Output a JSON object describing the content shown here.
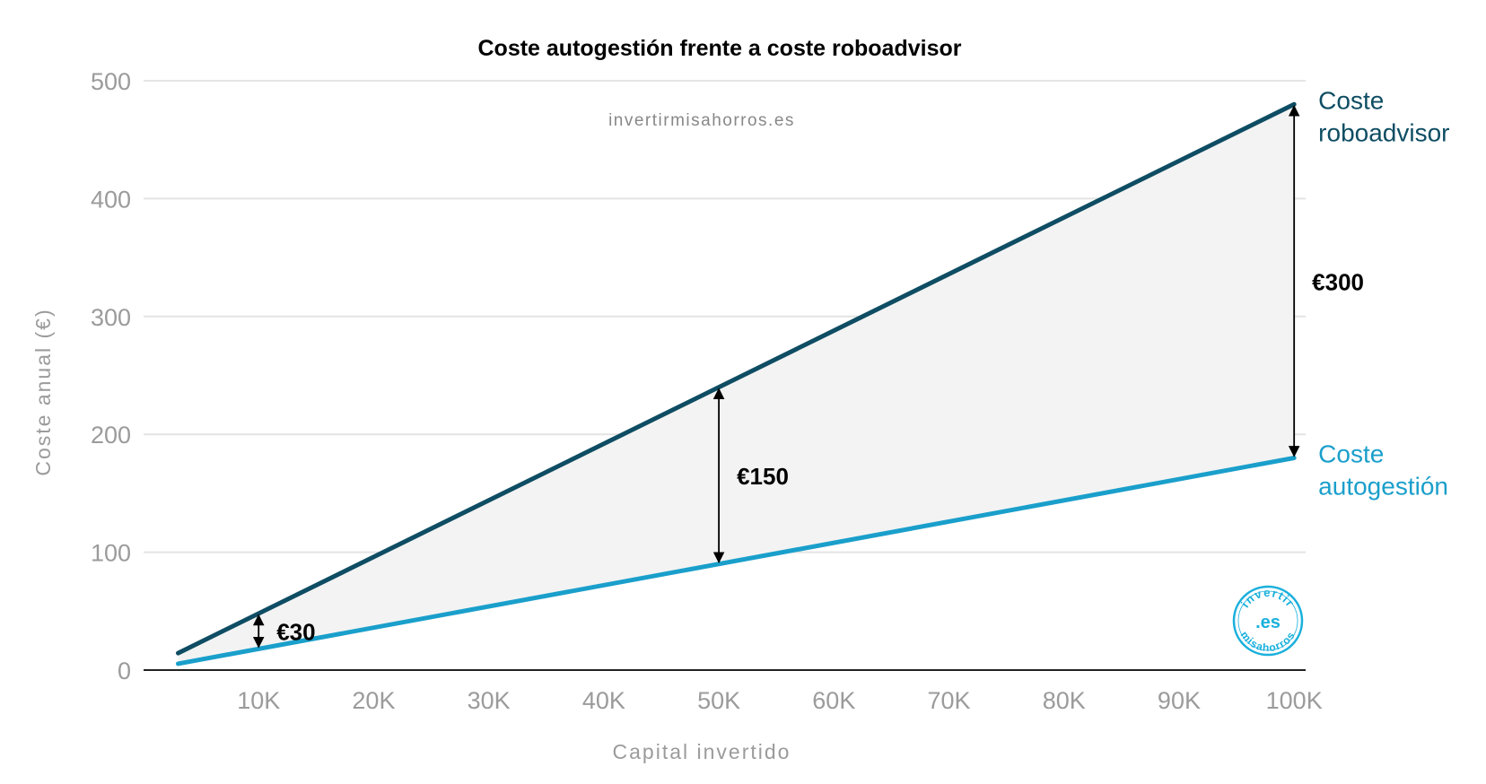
{
  "chart_data": {
    "type": "line",
    "title": "Coste autogestión frente a coste roboadvisor",
    "watermark": "invertirmisahorros.es",
    "xlabel": "Capital invertido",
    "ylabel": "Coste anual (€)",
    "xlim": [
      0,
      101000
    ],
    "ylim": [
      0,
      500
    ],
    "x_ticks": [
      10000,
      20000,
      30000,
      40000,
      50000,
      60000,
      70000,
      80000,
      90000,
      100000
    ],
    "x_tick_labels": [
      "10K",
      "20K",
      "30K",
      "40K",
      "50K",
      "60K",
      "70K",
      "80K",
      "90K",
      "100K"
    ],
    "y_ticks": [
      0,
      100,
      200,
      300,
      400,
      500
    ],
    "y_tick_labels": [
      "0",
      "100",
      "200",
      "300",
      "400",
      "500"
    ],
    "grid": true,
    "series": [
      {
        "name": "Coste roboadvisor",
        "label_lines": [
          "Coste",
          "roboadvisor"
        ],
        "color": "#0e4d63",
        "x": [
          3000,
          100000
        ],
        "y": [
          14.4,
          480
        ]
      },
      {
        "name": "Coste autogestión",
        "label_lines": [
          "Coste",
          "autogestión"
        ],
        "color": "#1a9fcb",
        "x": [
          3000,
          100000
        ],
        "y": [
          5.4,
          180
        ]
      }
    ],
    "fill_between_color": "#f3f3f3",
    "annotations": [
      {
        "x": 10000,
        "y_low": 18,
        "y_high": 48,
        "label": "€30"
      },
      {
        "x": 50000,
        "y_low": 90,
        "y_high": 240,
        "label": "€150"
      },
      {
        "x": 100000,
        "y_low": 180,
        "y_high": 480,
        "label": "€300"
      }
    ],
    "logo": {
      "top": "invertir",
      "center": ".es",
      "bottom": "misahorros",
      "color": "#1ab0dc"
    }
  }
}
